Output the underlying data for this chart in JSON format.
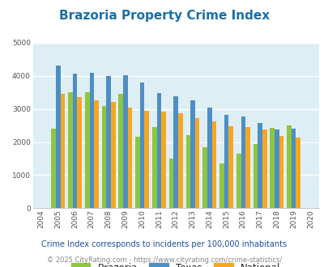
{
  "title": "Brazoria Property Crime Index",
  "years": [
    2004,
    2005,
    2006,
    2007,
    2008,
    2009,
    2010,
    2011,
    2012,
    2013,
    2014,
    2015,
    2016,
    2017,
    2018,
    2019,
    2020
  ],
  "brazoria": [
    null,
    2400,
    3500,
    3500,
    3100,
    3450,
    2150,
    2450,
    1500,
    2200,
    1850,
    1350,
    1650,
    1950,
    2420,
    2500,
    null
  ],
  "texas": [
    null,
    4300,
    4070,
    4100,
    4000,
    4020,
    3800,
    3480,
    3380,
    3250,
    3030,
    2830,
    2770,
    2570,
    2390,
    2400,
    null
  ],
  "national": [
    null,
    3450,
    3360,
    3260,
    3220,
    3040,
    2940,
    2920,
    2880,
    2730,
    2620,
    2490,
    2460,
    2380,
    2190,
    2130,
    null
  ],
  "colors": {
    "brazoria": "#8dc63f",
    "texas": "#4d8fc4",
    "national": "#f5a623"
  },
  "ylim": [
    0,
    5000
  ],
  "yticks": [
    0,
    1000,
    2000,
    3000,
    4000,
    5000
  ],
  "bg_color": "#deeef5",
  "plot_bg": "#deeef5",
  "subtitle": "Crime Index corresponds to incidents per 100,000 inhabitants",
  "footer": "© 2025 CityRating.com - https://www.cityrating.com/crime-statistics/",
  "title_color": "#1a6fa8",
  "subtitle_color": "#1a4fa0",
  "footer_color": "#888888",
  "legend_label_color": "#222222"
}
